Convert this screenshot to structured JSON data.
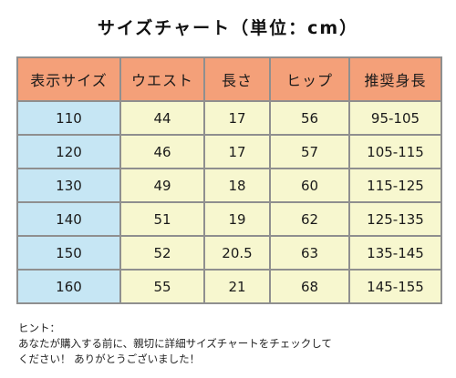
{
  "title": "サイズチャート（単位：cm）",
  "table": {
    "headers": [
      "表示サイズ",
      "ウエスト",
      "長さ",
      "ヒップ",
      "推奨身長"
    ],
    "rows": [
      [
        "110",
        "44",
        "17",
        "56",
        "95-105"
      ],
      [
        "120",
        "46",
        "17",
        "57",
        "105-115"
      ],
      [
        "130",
        "49",
        "18",
        "60",
        "115-125"
      ],
      [
        "140",
        "51",
        "19",
        "62",
        "125-135"
      ],
      [
        "150",
        "52",
        "20.5",
        "63",
        "135-145"
      ],
      [
        "160",
        "55",
        "21",
        "68",
        "145-155"
      ]
    ]
  },
  "note": {
    "label": "ヒント：",
    "line1": "あなたが購入する前に、親切に詳細サイズチャートをチェックして",
    "line2": "ください！ ありがとうございました！"
  },
  "colors": {
    "header_bg": "#f4a079",
    "first_col_bg": "#c6e6f4",
    "cell_bg": "#f7f7cf",
    "border": "#8f8f8f"
  }
}
